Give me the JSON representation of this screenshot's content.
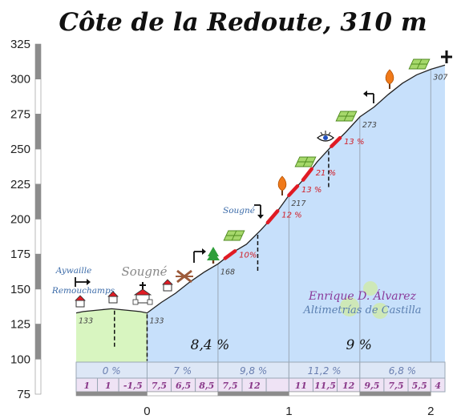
{
  "chart_data": {
    "type": "area",
    "title": "Côte de la Redoute, 310 m",
    "xlabel": "",
    "ylabel": "",
    "xlim": [
      -0.5,
      2.1
    ],
    "ylim": [
      75,
      325
    ],
    "y_ticks": [
      "325",
      "300",
      "275",
      "250",
      "225",
      "200",
      "175",
      "150",
      "125",
      "100",
      "75"
    ],
    "x_ticks": [
      "0",
      "1",
      "2"
    ],
    "profile": [
      {
        "x": -0.5,
        "y": 133
      },
      {
        "x": -0.45,
        "y": 134
      },
      {
        "x": -0.35,
        "y": 135
      },
      {
        "x": -0.25,
        "y": 136
      },
      {
        "x": -0.15,
        "y": 135
      },
      {
        "x": -0.05,
        "y": 134
      },
      {
        "x": 0.0,
        "y": 133
      },
      {
        "x": 0.1,
        "y": 140.5
      },
      {
        "x": 0.2,
        "y": 147
      },
      {
        "x": 0.3,
        "y": 155
      },
      {
        "x": 0.4,
        "y": 162
      },
      {
        "x": 0.5,
        "y": 168
      },
      {
        "x": 0.6,
        "y": 176
      },
      {
        "x": 0.7,
        "y": 182
      },
      {
        "x": 0.8,
        "y": 192
      },
      {
        "x": 0.9,
        "y": 203
      },
      {
        "x": 1.0,
        "y": 217
      },
      {
        "x": 1.1,
        "y": 228
      },
      {
        "x": 1.2,
        "y": 241
      },
      {
        "x": 1.3,
        "y": 252
      },
      {
        "x": 1.4,
        "y": 262
      },
      {
        "x": 1.5,
        "y": 273
      },
      {
        "x": 1.6,
        "y": 280
      },
      {
        "x": 1.7,
        "y": 289
      },
      {
        "x": 1.8,
        "y": 297
      },
      {
        "x": 1.9,
        "y": 303
      },
      {
        "x": 2.0,
        "y": 307
      },
      {
        "x": 2.1,
        "y": 310
      }
    ],
    "altitude_labels": [
      {
        "x": -0.5,
        "y": 133,
        "label": "133"
      },
      {
        "x": 0.0,
        "y": 133,
        "label": "133"
      },
      {
        "x": 0.5,
        "y": 168,
        "label": "168"
      },
      {
        "x": 1.0,
        "y": 217,
        "label": "217"
      },
      {
        "x": 1.5,
        "y": 273,
        "label": "273"
      },
      {
        "x": 2.0,
        "y": 307,
        "label": "307"
      }
    ],
    "steep_sections": [
      {
        "x0": 0.55,
        "x1": 0.62,
        "label": "10%"
      },
      {
        "x0": 0.85,
        "x1": 0.92,
        "label": "12 %"
      },
      {
        "x0": 1.0,
        "x1": 1.06,
        "label": "13 %"
      },
      {
        "x0": 1.1,
        "x1": 1.16,
        "label": "21 %"
      },
      {
        "x0": 1.3,
        "x1": 1.36,
        "label": "13 %"
      }
    ],
    "section_averages": [
      {
        "x0": -0.5,
        "x1": 0.0,
        "label": ""
      },
      {
        "x0": 0.0,
        "x1": 1.0,
        "label": "8,4 %"
      },
      {
        "x0": 1.0,
        "x1": 2.1,
        "label": "9 %"
      }
    ],
    "segment_gradients": [
      {
        "x0": -0.5,
        "x1": 0.0,
        "label": "0 %"
      },
      {
        "x0": 0.0,
        "x1": 0.5,
        "label": "7 %"
      },
      {
        "x0": 0.5,
        "x1": 1.0,
        "label": "9,8 %"
      },
      {
        "x0": 1.0,
        "x1": 1.5,
        "label": "11,2 %"
      },
      {
        "x0": 1.5,
        "x1": 2.1,
        "label": "6,8 %"
      }
    ],
    "tenth_gradients": [
      {
        "x0": -0.5,
        "x1": -0.35,
        "label": "1"
      },
      {
        "x0": -0.35,
        "x1": -0.2,
        "label": "1"
      },
      {
        "x0": -0.2,
        "x1": 0.0,
        "label": "-1,5"
      },
      {
        "x0": 0.0,
        "x1": 0.17,
        "label": "7,5"
      },
      {
        "x0": 0.17,
        "x1": 0.34,
        "label": "6,5"
      },
      {
        "x0": 0.34,
        "x1": 0.5,
        "label": "8,5"
      },
      {
        "x0": 0.5,
        "x1": 0.67,
        "label": "7,5"
      },
      {
        "x0": 0.67,
        "x1": 0.84,
        "label": "12"
      },
      {
        "x0": 0.84,
        "x1": 1.0,
        "label": ""
      },
      {
        "x0": 1.0,
        "x1": 1.17,
        "label": "11"
      },
      {
        "x0": 1.17,
        "x1": 1.34,
        "label": "11,5"
      },
      {
        "x0": 1.34,
        "x1": 1.5,
        "label": "12"
      },
      {
        "x0": 1.5,
        "x1": 1.67,
        "label": "9,5"
      },
      {
        "x0": 1.67,
        "x1": 1.84,
        "label": "7,5"
      },
      {
        "x0": 1.84,
        "x1": 2.0,
        "label": "5,5"
      },
      {
        "x0": 2.0,
        "x1": 2.1,
        "label": "4"
      }
    ],
    "places": [
      {
        "text": "Aywaille",
        "cls": "place"
      },
      {
        "text": "Remouchamps",
        "cls": "place"
      },
      {
        "text": "Sougné",
        "cls": "place-big"
      },
      {
        "text": "Sougné",
        "cls": "place"
      }
    ],
    "credits": {
      "author": "Enrique D. Álvarez",
      "brand": "Altimetrías de Castilla"
    },
    "colors": {
      "flat_fill": "#d8f5c0",
      "climb_fill": "#c7e0fb",
      "steep": "#e01b24",
      "band_blue": "#dde7f6",
      "band_purple": "#efe3f5",
      "grid": "#9aa7b5"
    }
  }
}
